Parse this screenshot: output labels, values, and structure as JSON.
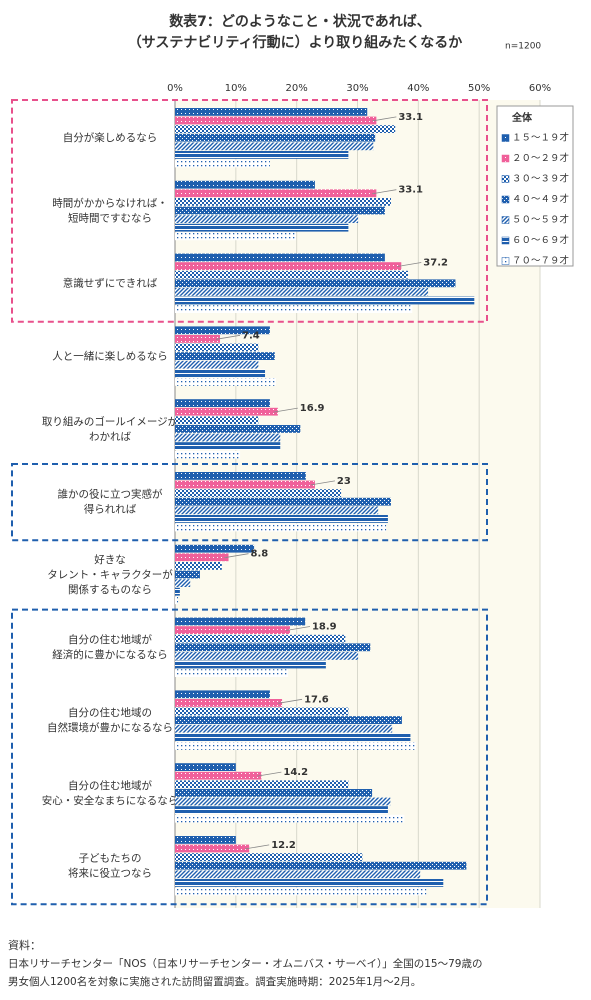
{
  "chart_data": {
    "type": "bar",
    "orientation": "horizontal",
    "title": [
      "数表7：どのようなこと・状況であれば、",
      "（サステナビリティ行動に）より取り組みたくなるか"
    ],
    "note": "n=1200",
    "legend_title": "全体",
    "categories": [
      [
        "自分が楽しめるなら"
      ],
      [
        "時間がかからなければ・",
        "短時間ですむなら"
      ],
      [
        "意識せずにできれば"
      ],
      [
        "人と一緒に楽しめるなら"
      ],
      [
        "取り組みのゴールイメージが",
        "わかれば"
      ],
      [
        "誰かの役に立つ実感が",
        "得られれば"
      ],
      [
        "好きな",
        "タレント・キャラクターが",
        "関係するものなら"
      ],
      [
        "自分の住む地域が",
        "経済的に豊かになるなら"
      ],
      [
        "自分の住む地域の",
        "自然環境が豊かになるなら"
      ],
      [
        "自分の住む地域が",
        "安心・安全なまちになるなら"
      ],
      [
        "子どもたちの",
        "将来に役立つなら"
      ]
    ],
    "series": [
      {
        "name": "１５～１９才",
        "color": "#1f5fae",
        "values": [
          31.6,
          23.0,
          34.5,
          15.6,
          15.6,
          21.5,
          13.0,
          21.4,
          15.6,
          10.0,
          10.0
        ]
      },
      {
        "name": "２０～２９才",
        "color": "#f0609a",
        "values": [
          33.1,
          33.1,
          37.2,
          7.4,
          16.9,
          23.0,
          8.8,
          18.9,
          17.6,
          14.2,
          12.2
        ]
      },
      {
        "name": "３０～３９才",
        "color": "#1f5fae",
        "values": [
          36.2,
          35.5,
          38.3,
          13.7,
          13.7,
          27.3,
          7.7,
          28.0,
          28.5,
          28.5,
          30.8
        ]
      },
      {
        "name": "４０～４９才",
        "color": "#1f5fae",
        "values": [
          32.9,
          34.5,
          46.1,
          16.4,
          20.6,
          35.5,
          4.1,
          32.1,
          37.3,
          32.4,
          47.9
        ]
      },
      {
        "name": "５０～５９才",
        "color": "#1f5fae",
        "values": [
          32.6,
          30.1,
          41.6,
          13.7,
          17.3,
          33.4,
          2.5,
          30.1,
          35.7,
          35.4,
          40.3
        ]
      },
      {
        "name": "６０～６９才",
        "color": "#1f5fae",
        "values": [
          28.5,
          28.5,
          49.2,
          14.8,
          17.3,
          35.0,
          0.8,
          24.8,
          38.7,
          35.0,
          44.1
        ]
      },
      {
        "name": "７０～７９才",
        "color": "#1f5fae",
        "values": [
          15.6,
          19.9,
          39.0,
          16.6,
          10.7,
          34.7,
          0.5,
          18.6,
          39.6,
          37.7,
          41.3
        ]
      }
    ],
    "labeled_series": 1,
    "xlim": [
      0,
      60
    ],
    "xticks": [
      {
        "value": 0,
        "label": "0%"
      },
      {
        "value": 10,
        "label": "10%"
      },
      {
        "value": 20,
        "label": "20%"
      },
      {
        "value": 30,
        "label": "30%"
      },
      {
        "value": 40,
        "label": "40%"
      },
      {
        "value": 50,
        "label": "50%"
      },
      {
        "value": 60,
        "label": "60%"
      }
    ],
    "grid": true,
    "legend": "top-right",
    "source": [
      "資料：",
      "日本リサーチセンター「NOS（日本リサーチセンター・オムニバス・サーベイ）」全国の15～79歳の",
      "男女個人1200名を対象に実施された訪問留置調査。調査実施時期：2025年1月～2月。"
    ]
  }
}
